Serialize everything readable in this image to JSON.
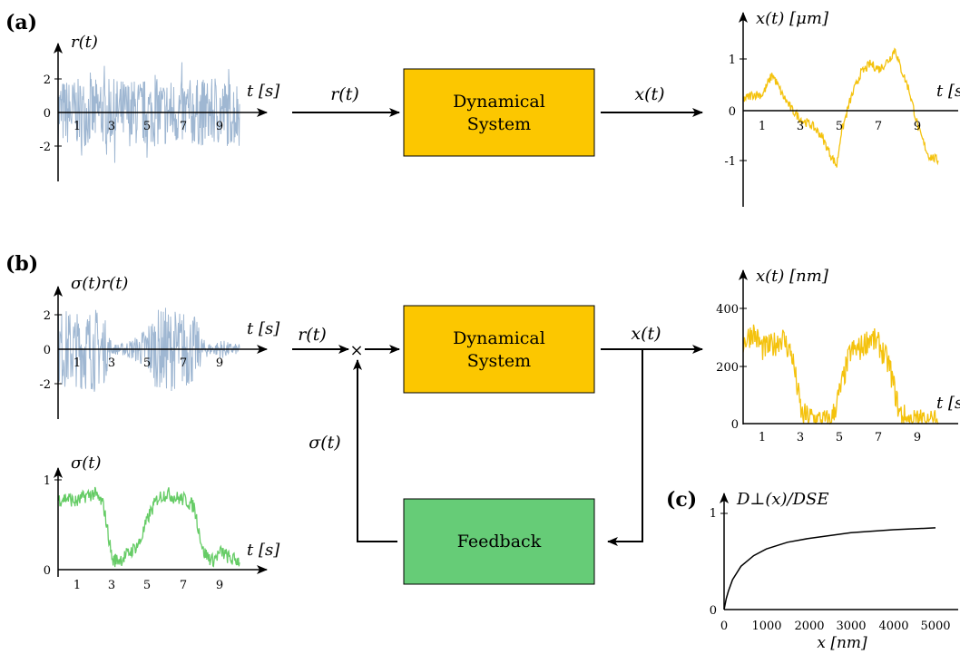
{
  "panels": {
    "a": "(a)",
    "b": "(b)",
    "c": "(c)"
  },
  "colors": {
    "noise": "#9fb7d2",
    "position": "#f4c20d",
    "sigma": "#66cc66",
    "dynamical_box": "#fcc700",
    "feedback_box": "#66cc77"
  },
  "a": {
    "input_plot": {
      "ylabel": "r(t)",
      "xlabel": "t [s]",
      "xticks": [
        "1",
        "3",
        "5",
        "7",
        "9"
      ],
      "yticks": [
        "2",
        "0",
        "-2"
      ]
    },
    "arrow_in": "r(t)",
    "box": [
      "Dynamical",
      "System"
    ],
    "arrow_out": "x(t)",
    "output_plot": {
      "ylabel": "x(t) [μm]",
      "xlabel": "t [s]",
      "xticks": [
        "1",
        "3",
        "5",
        "7",
        "9"
      ],
      "yticks": [
        "1",
        "0",
        "-1"
      ]
    }
  },
  "b": {
    "input_plot": {
      "ylabel": "σ(t)r(t)",
      "xlabel": "t [s]",
      "xticks": [
        "1",
        "3",
        "5",
        "7",
        "9"
      ],
      "yticks": [
        "2",
        "0",
        "-2"
      ]
    },
    "sigma_plot": {
      "ylabel": "σ(t)",
      "xlabel": "t [s]",
      "xticks": [
        "1",
        "3",
        "5",
        "7",
        "9"
      ],
      "yticks": [
        "1",
        "0"
      ]
    },
    "arrow_in": "r(t)",
    "multiply": "×",
    "box": [
      "Dynamical",
      "System"
    ],
    "arrow_out": "x(t)",
    "feedback_label": "σ(t)",
    "feedback_box": "Feedback",
    "output_plot": {
      "ylabel": "x(t) [nm]",
      "xlabel": "t [s]",
      "xticks": [
        "1",
        "3",
        "5",
        "7",
        "9"
      ],
      "yticks": [
        "400",
        "200",
        "0"
      ]
    }
  },
  "c": {
    "ylabel": "D⊥(x)/DSE",
    "xlabel": "x [nm]",
    "xticks": [
      "0",
      "1000",
      "2000",
      "3000",
      "4000",
      "5000"
    ],
    "yticks": [
      "1",
      "0"
    ]
  },
  "chart_data": [
    {
      "type": "line",
      "title": "",
      "xlabel": "t [s]",
      "ylabel": "r(t)",
      "xlim": [
        0,
        10
      ],
      "ylim": [
        -3,
        3
      ],
      "series": [
        {
          "values": "white noise, amplitude ~±2.5"
        }
      ]
    },
    {
      "type": "line",
      "title": "",
      "xlabel": "t [s]",
      "ylabel": "x(t) [μm]",
      "xlim": [
        0,
        10
      ],
      "ylim": [
        -1.6,
        1.6
      ],
      "x": [
        0,
        0.5,
        1,
        1.5,
        2,
        2.5,
        3,
        3.5,
        4,
        4.5,
        4.8,
        5,
        5.5,
        6,
        6.5,
        7,
        7.5,
        7.8,
        8,
        8.5,
        9,
        9.5,
        10
      ],
      "y": [
        0.2,
        0.3,
        0.3,
        0.7,
        0.3,
        0.0,
        -0.2,
        -0.3,
        -0.5,
        -0.9,
        -1.1,
        -0.5,
        0.2,
        0.7,
        0.9,
        0.8,
        1.0,
        1.2,
        0.9,
        0.4,
        -0.4,
        -0.9,
        -1.0
      ]
    },
    {
      "type": "line",
      "title": "",
      "xlabel": "t [s]",
      "ylabel": "σ(t)r(t)",
      "xlim": [
        0,
        10
      ],
      "ylim": [
        -3,
        3
      ],
      "series": [
        {
          "values": "modulated noise"
        }
      ]
    },
    {
      "type": "line",
      "title": "",
      "xlabel": "t [s]",
      "ylabel": "x(t) [nm]",
      "xlim": [
        0,
        10
      ],
      "ylim": [
        0,
        450
      ],
      "x": [
        0,
        0.5,
        1,
        1.5,
        2,
        2.5,
        3,
        3.5,
        4,
        4.5,
        5,
        5.5,
        6,
        6.5,
        7,
        7.5,
        8,
        8.5,
        9,
        9.5,
        10
      ],
      "y": [
        280,
        320,
        260,
        270,
        300,
        240,
        30,
        20,
        10,
        5,
        120,
        250,
        260,
        300,
        270,
        200,
        40,
        10,
        10,
        5,
        5
      ]
    },
    {
      "type": "line",
      "title": "",
      "xlabel": "t [s]",
      "ylabel": "σ(t)",
      "xlim": [
        0,
        10
      ],
      "ylim": [
        0,
        1
      ],
      "x": [
        0,
        0.5,
        1,
        1.5,
        2,
        2.5,
        3,
        3.5,
        4,
        4.5,
        5,
        5.5,
        6,
        6.5,
        7,
        7.5,
        8,
        8.5,
        9,
        9.5,
        10
      ],
      "y": [
        0.78,
        0.8,
        0.75,
        0.82,
        0.85,
        0.72,
        0.1,
        0.12,
        0.2,
        0.3,
        0.6,
        0.8,
        0.85,
        0.8,
        0.78,
        0.7,
        0.2,
        0.1,
        0.2,
        0.12,
        0.1
      ]
    },
    {
      "type": "line",
      "title": "",
      "xlabel": "x [nm]",
      "ylabel": "D⊥(x)/DSE",
      "xlim": [
        0,
        5400
      ],
      "ylim": [
        0,
        1.1
      ],
      "x": [
        0,
        50,
        100,
        200,
        400,
        700,
        1000,
        1500,
        2000,
        3000,
        4000,
        5000
      ],
      "y": [
        0,
        0.11,
        0.19,
        0.31,
        0.45,
        0.56,
        0.63,
        0.7,
        0.74,
        0.8,
        0.83,
        0.85
      ]
    }
  ]
}
